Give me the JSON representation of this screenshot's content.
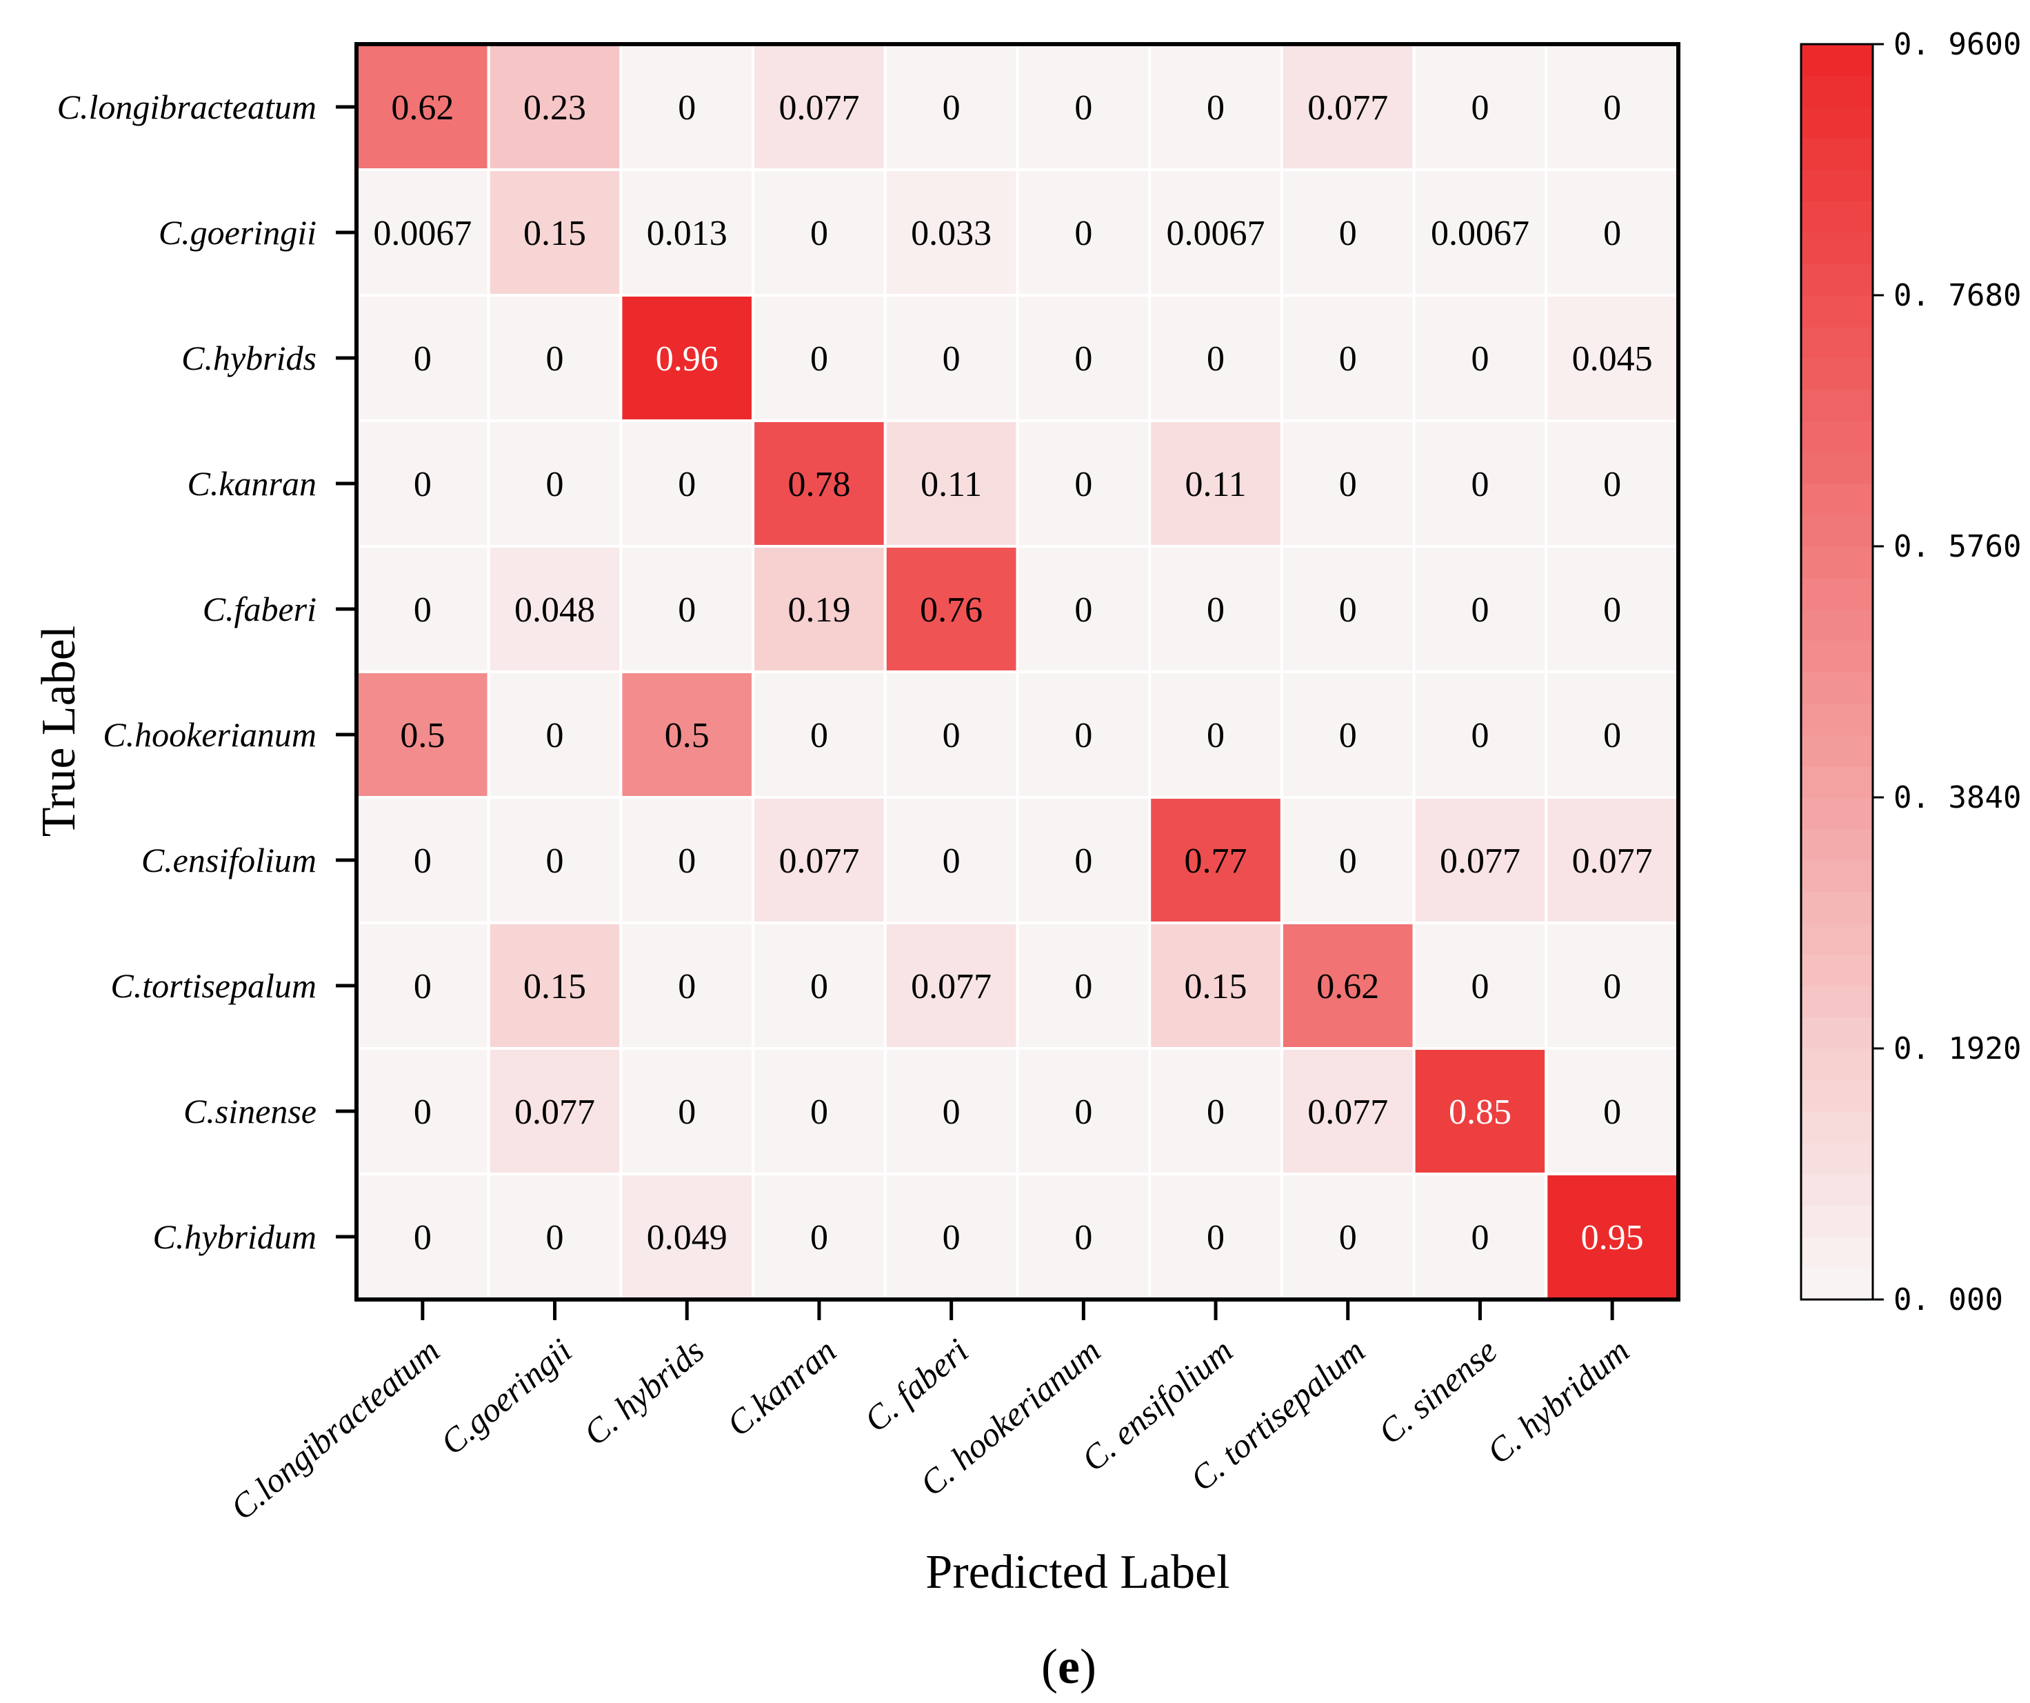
{
  "chart_data": {
    "type": "heatmap",
    "title": "",
    "xlabel": "Predicted Label",
    "ylabel": "True Label",
    "panel_label": {
      "open": "(",
      "letter": "e",
      "close": ")"
    },
    "row_labels": [
      "C.longibracteatum",
      "C.goeringii",
      "C.hybrids",
      "C.kanran",
      "C.faberi",
      "C.hookerianum",
      "C.ensifolium",
      "C.tortisepalum",
      "C.sinense",
      "C.hybridum"
    ],
    "col_labels": [
      "C.longibracteatum",
      "C.goeringii",
      "C. hybrids",
      "C.kanran",
      "C. faberi",
      "C. hookerianum",
      "C. ensifolium",
      "C. tortisepalum",
      "C. sinense",
      "C. hybridum"
    ],
    "values": [
      [
        0.62,
        0.23,
        0,
        0.077,
        0,
        0,
        0,
        0.077,
        0,
        0
      ],
      [
        0.0067,
        0.15,
        0.013,
        0,
        0.033,
        0,
        0.0067,
        0,
        0.0067,
        0
      ],
      [
        0,
        0,
        0.96,
        0,
        0,
        0,
        0,
        0,
        0,
        0.045
      ],
      [
        0,
        0,
        0,
        0.78,
        0.11,
        0,
        0.11,
        0,
        0,
        0
      ],
      [
        0,
        0.048,
        0,
        0.19,
        0.76,
        0,
        0,
        0,
        0,
        0
      ],
      [
        0.5,
        0,
        0.5,
        0,
        0,
        0,
        0,
        0,
        0,
        0
      ],
      [
        0,
        0,
        0,
        0.077,
        0,
        0,
        0.77,
        0,
        0.077,
        0.077
      ],
      [
        0,
        0.15,
        0,
        0,
        0.077,
        0,
        0.15,
        0.62,
        0,
        0
      ],
      [
        0,
        0.077,
        0,
        0,
        0,
        0,
        0,
        0.077,
        0.85,
        0
      ],
      [
        0,
        0,
        0.049,
        0,
        0,
        0,
        0,
        0,
        0,
        0.95
      ]
    ],
    "colorbar": {
      "min": 0,
      "max": 0.96,
      "ticks": [
        0,
        0.192,
        0.384,
        0.576,
        0.768,
        0.96
      ],
      "tick_labels": [
        "0. 000",
        "0. 1920",
        "0. 3840",
        "0. 5760",
        "0. 7680",
        "0. 9600"
      ],
      "levels": 40
    },
    "colors": {
      "low": "#f9f4f4",
      "high": "#ec2a2b",
      "grid": "#ffffff",
      "frame": "#000000",
      "text_dark": "#000000",
      "text_light": "#ffffff"
    }
  }
}
